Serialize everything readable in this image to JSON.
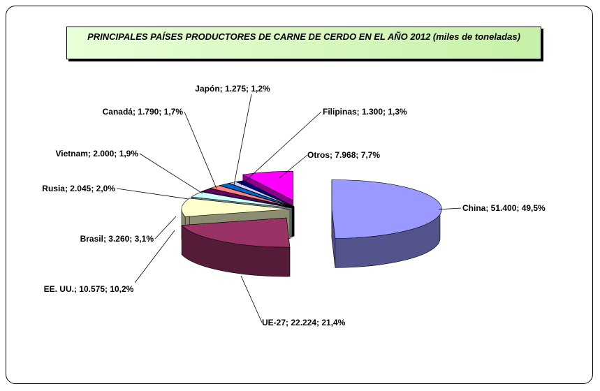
{
  "chart_data": {
    "type": "pie",
    "title": "PRINCIPALES PAÍSES PRODUCTORES DE CARNE DE CERDO EN EL AÑO 2012 (miles de toneladas)",
    "values": [
      51400,
      22224,
      10575,
      3260,
      2045,
      2000,
      1790,
      1275,
      1300,
      7968
    ],
    "value_labels": [
      "China; 51.400; 49,5%",
      "UE-27; 22.224; 21,4%",
      "EE. UU.; 10.575; 10,2%",
      "Brasil; 3.260; 3,1%",
      "Rusia; 2.045; 2,0%",
      "Vietnam; 2.000; 1,9%",
      "Canadá; 1.790; 1,7%",
      "Japón; 1.275; 1,2%",
      "Filipinas; 1.300; 1,3%",
      "Otros; 7.968; 7,7%"
    ],
    "colors": [
      "#9999ff",
      "#993366",
      "#ffffcc",
      "#ccffff",
      "#660066",
      "#ff8080",
      "#0066cc",
      "#ccccff",
      "#000080",
      "#ff00ff"
    ]
  }
}
